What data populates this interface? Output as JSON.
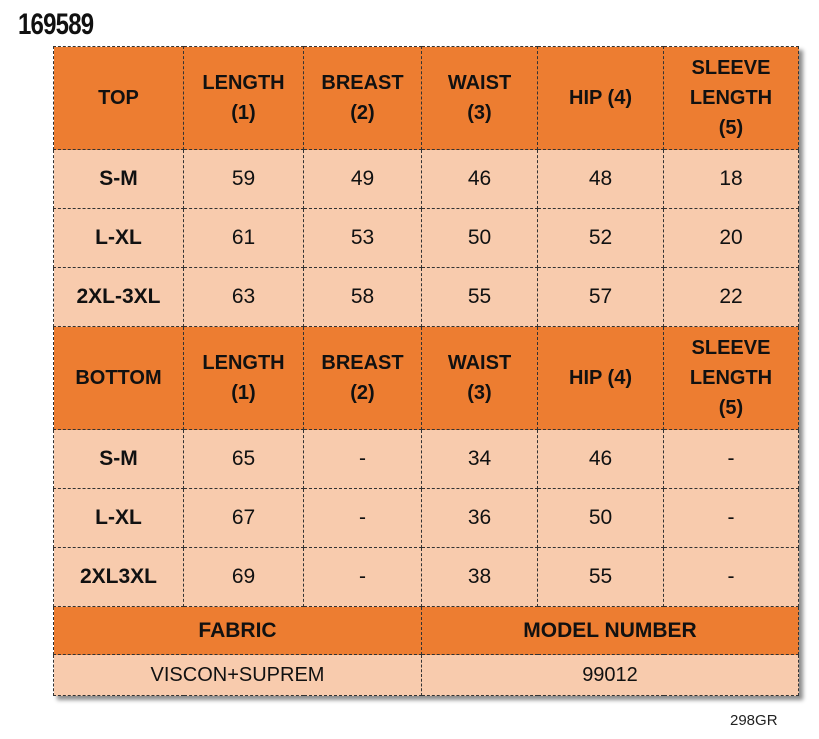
{
  "title": "169589",
  "top": {
    "header": [
      "TOP",
      "LENGTH\n(1)",
      "BREAST\n(2)",
      "WAIST\n(3)",
      "HIP (4)",
      "SLEEVE\nLENGTH\n(5)"
    ],
    "rows": [
      [
        "S-M",
        "59",
        "49",
        "46",
        "48",
        "18"
      ],
      [
        "L-XL",
        "61",
        "53",
        "50",
        "52",
        "20"
      ],
      [
        "2XL-3XL",
        "63",
        "58",
        "55",
        "57",
        "22"
      ]
    ]
  },
  "bottom": {
    "header": [
      "BOTTOM",
      "LENGTH\n(1)",
      "BREAST\n(2)",
      "WAIST\n(3)",
      "HIP (4)",
      "SLEEVE\nLENGTH\n(5)"
    ],
    "rows": [
      [
        "S-M",
        "65",
        "-",
        "34",
        "46",
        "-"
      ],
      [
        "L-XL",
        "67",
        "-",
        "36",
        "50",
        "-"
      ],
      [
        "2XL3XL",
        "69",
        "-",
        "38",
        "55",
        "-"
      ]
    ]
  },
  "footer": {
    "headers": [
      "FABRIC",
      "MODEL NUMBER"
    ],
    "values": [
      "VISCON+SUPREM",
      "99012"
    ]
  },
  "code": "298GR"
}
